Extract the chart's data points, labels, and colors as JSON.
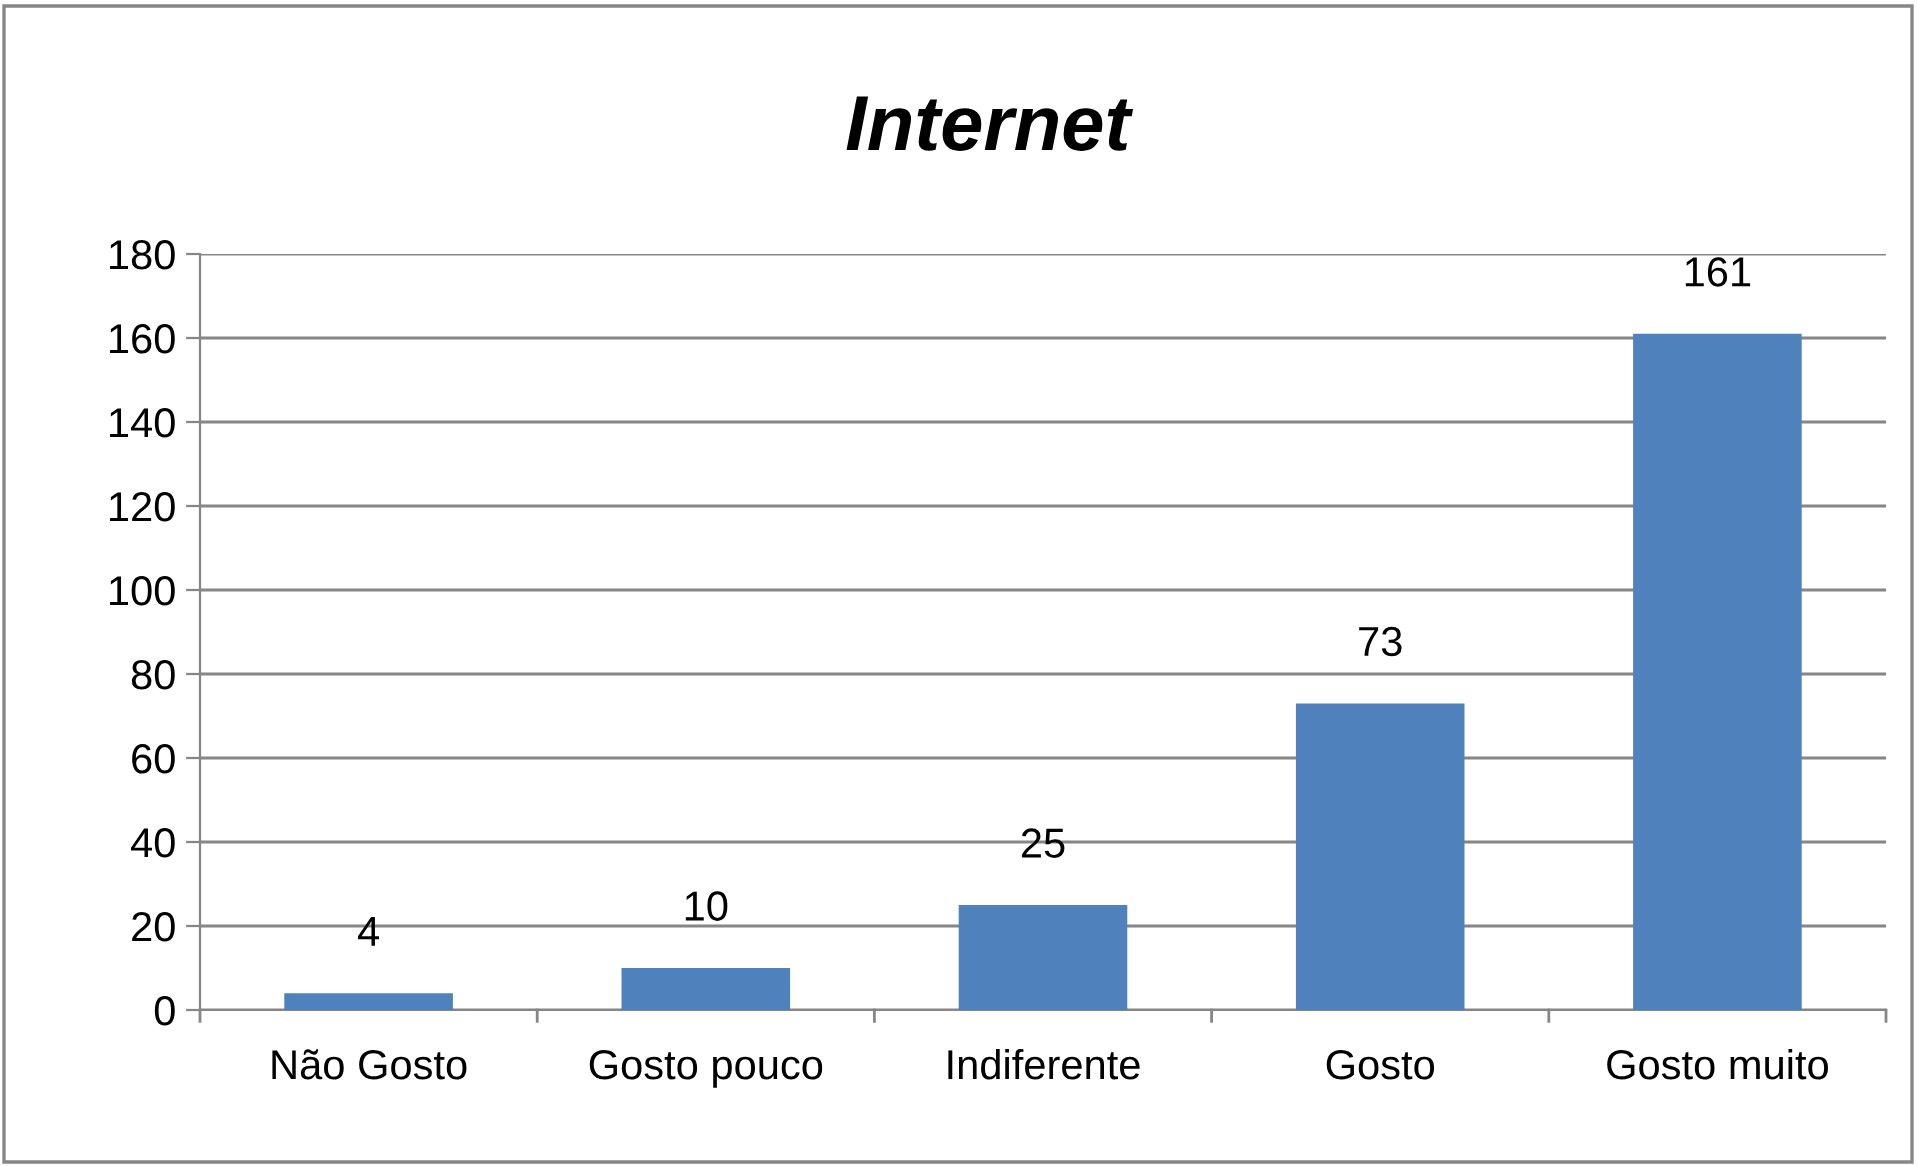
{
  "chart_data": {
    "type": "bar",
    "title": "Internet",
    "categories": [
      "Não Gosto",
      "Gosto pouco",
      "Indiferente",
      "Gosto",
      "Gosto muito"
    ],
    "values": [
      4,
      10,
      25,
      73,
      161
    ],
    "color": "#4f81bd",
    "ylim": [
      0,
      180
    ],
    "yticks": [
      0,
      20,
      40,
      60,
      80,
      100,
      120,
      140,
      160,
      180
    ],
    "grid": "y",
    "data_labels": true
  }
}
